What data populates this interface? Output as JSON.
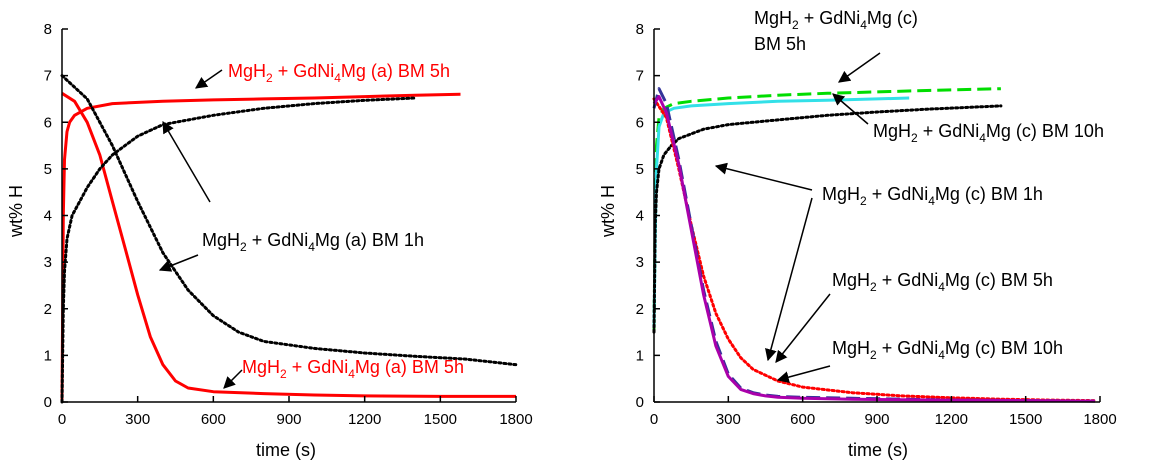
{
  "chart_data": [
    {
      "type": "line",
      "xlabel": "time (s)",
      "ylabel": "wt% H",
      "xlim": [
        0,
        1800
      ],
      "ylim": [
        0,
        8
      ],
      "xticks": [
        "0",
        "300",
        "600",
        "900",
        "1200",
        "1500",
        "1800"
      ],
      "yticks": [
        "0",
        "1",
        "2",
        "3",
        "4",
        "5",
        "6",
        "7",
        "8"
      ],
      "grid": false,
      "series": [
        {
          "id": "a_bm5h_abs",
          "color": "#ff0000",
          "style": "solid",
          "x": [
            0,
            5,
            10,
            20,
            30,
            50,
            100,
            200,
            400,
            600,
            800,
            1000,
            1200,
            1400,
            1580
          ],
          "y": [
            0,
            4.0,
            5.2,
            5.8,
            6.0,
            6.15,
            6.3,
            6.4,
            6.45,
            6.48,
            6.5,
            6.52,
            6.55,
            6.58,
            6.6
          ]
        },
        {
          "id": "a_bm5h_des",
          "color": "#ff0000",
          "style": "solid",
          "x": [
            0,
            50,
            100,
            150,
            200,
            250,
            300,
            350,
            400,
            450,
            500,
            600,
            800,
            1000,
            1200,
            1500,
            1800
          ],
          "y": [
            6.62,
            6.45,
            6.0,
            5.3,
            4.3,
            3.3,
            2.3,
            1.4,
            0.8,
            0.45,
            0.3,
            0.22,
            0.18,
            0.15,
            0.13,
            0.12,
            0.12
          ]
        },
        {
          "id": "a_bm1h_abs",
          "color": "#000000",
          "style": "dotted",
          "x": [
            0,
            5,
            10,
            20,
            40,
            70,
            100,
            150,
            200,
            300,
            400,
            600,
            800,
            1000,
            1200,
            1400
          ],
          "y": [
            0,
            2.0,
            2.8,
            3.5,
            4.0,
            4.3,
            4.6,
            5.0,
            5.3,
            5.7,
            5.95,
            6.15,
            6.3,
            6.4,
            6.47,
            6.52
          ]
        },
        {
          "id": "a_bm1h_des",
          "color": "#000000",
          "style": "dotted",
          "x": [
            0,
            100,
            200,
            300,
            400,
            500,
            600,
            700,
            800,
            1000,
            1200,
            1400,
            1600,
            1800
          ],
          "y": [
            7.0,
            6.5,
            5.5,
            4.3,
            3.2,
            2.4,
            1.85,
            1.5,
            1.3,
            1.15,
            1.05,
            0.98,
            0.92,
            0.8
          ]
        }
      ],
      "annotations": [
        {
          "text": "MgH",
          "sub1": "2",
          "mid": " + GdNi",
          "sub2": "4",
          "tail": "Mg (a) BM 5h",
          "color": "#ff0000"
        },
        {
          "text": "MgH",
          "sub1": "2",
          "mid": " + GdNi",
          "sub2": "4",
          "tail": "Mg (a) BM 1h",
          "color": "#000000"
        },
        {
          "text": "MgH",
          "sub1": "2",
          "mid": " + GdNi",
          "sub2": "4",
          "tail": "Mg (a) BM 5h",
          "color": "#ff0000"
        }
      ]
    },
    {
      "type": "line",
      "xlabel": "time (s)",
      "ylabel": "wt% H",
      "xlim": [
        0,
        1800
      ],
      "ylim": [
        0,
        8
      ],
      "xticks": [
        "0",
        "300",
        "600",
        "900",
        "1200",
        "1500",
        "1800"
      ],
      "yticks": [
        "0",
        "1",
        "2",
        "3",
        "4",
        "5",
        "6",
        "7",
        "8"
      ],
      "grid": false,
      "series": [
        {
          "id": "c_bm5h_abs",
          "color": "#00dd00",
          "style": "dashed",
          "x": [
            0,
            5,
            10,
            20,
            40,
            80,
            150,
            300,
            500,
            700,
            900,
            1100,
            1400
          ],
          "y": [
            1.5,
            4.0,
            5.5,
            6.1,
            6.3,
            6.4,
            6.45,
            6.52,
            6.58,
            6.62,
            6.65,
            6.68,
            6.72
          ]
        },
        {
          "id": "c_bm10h_abs",
          "color": "#33e0e8",
          "style": "solid",
          "x": [
            0,
            5,
            10,
            20,
            40,
            80,
            150,
            300,
            500,
            700,
            900,
            1030
          ],
          "y": [
            1.6,
            3.5,
            5.0,
            5.9,
            6.2,
            6.3,
            6.35,
            6.4,
            6.45,
            6.47,
            6.5,
            6.52
          ]
        },
        {
          "id": "c_bm1h_abs",
          "color": "#000000",
          "style": "dotted",
          "x": [
            0,
            5,
            10,
            20,
            40,
            70,
            100,
            200,
            300,
            500,
            700,
            900,
            1100,
            1400
          ],
          "y": [
            1.5,
            3.8,
            4.5,
            5.0,
            5.3,
            5.5,
            5.65,
            5.85,
            5.95,
            6.05,
            6.15,
            6.22,
            6.28,
            6.35
          ]
        },
        {
          "id": "c_bm1h_des",
          "color": "#ff0000",
          "style": "dotted",
          "x": [
            0,
            50,
            100,
            150,
            200,
            250,
            300,
            350,
            400,
            500,
            600,
            800,
            1000,
            1200,
            1400,
            1600,
            1780
          ],
          "y": [
            6.5,
            6.1,
            5.0,
            3.8,
            2.7,
            1.9,
            1.35,
            0.95,
            0.7,
            0.45,
            0.32,
            0.2,
            0.13,
            0.09,
            0.06,
            0.04,
            0.03
          ]
        },
        {
          "id": "c_bm5h_des",
          "color": "#333399",
          "style": "dashed",
          "x": [
            0,
            20,
            50,
            100,
            150,
            200,
            250,
            300,
            350,
            400,
            450,
            500,
            600,
            800,
            1000,
            1200,
            1500,
            1780
          ],
          "y": [
            6.3,
            6.72,
            6.4,
            5.2,
            3.8,
            2.4,
            1.3,
            0.6,
            0.3,
            0.2,
            0.15,
            0.12,
            0.1,
            0.08,
            0.06,
            0.04,
            0.03,
            0.02
          ]
        },
        {
          "id": "c_bm10h_des",
          "color": "#aa00aa",
          "style": "solid",
          "x": [
            0,
            20,
            50,
            100,
            150,
            200,
            250,
            300,
            350,
            400,
            450,
            500,
            600,
            800,
            1000,
            1200,
            1500,
            1780
          ],
          "y": [
            6.4,
            6.55,
            6.2,
            5.1,
            3.7,
            2.3,
            1.2,
            0.55,
            0.27,
            0.18,
            0.13,
            0.1,
            0.08,
            0.06,
            0.05,
            0.04,
            0.03,
            0.02
          ]
        }
      ],
      "annotations": [
        {
          "text": "MgH",
          "sub1": "2",
          "mid": " + GdNi",
          "sub2": "4",
          "tail": "Mg (c)",
          "line2": "BM 5h",
          "color": "#000000"
        },
        {
          "text": "MgH",
          "sub1": "2",
          "mid": " + GdNi",
          "sub2": "4",
          "tail": "Mg (c) BM 10h",
          "color": "#000000"
        },
        {
          "text": "MgH",
          "sub1": "2",
          "mid": " + GdNi",
          "sub2": "4",
          "tail": "Mg (c) BM 1h",
          "color": "#000000"
        },
        {
          "text": "MgH",
          "sub1": "2",
          "mid": " + GdNi",
          "sub2": "4",
          "tail": "Mg (c) BM 5h",
          "color": "#000000"
        },
        {
          "text": "MgH",
          "sub1": "2",
          "mid": " + GdNi",
          "sub2": "4",
          "tail": "Mg (c) BM 10h",
          "color": "#000000"
        }
      ]
    }
  ]
}
